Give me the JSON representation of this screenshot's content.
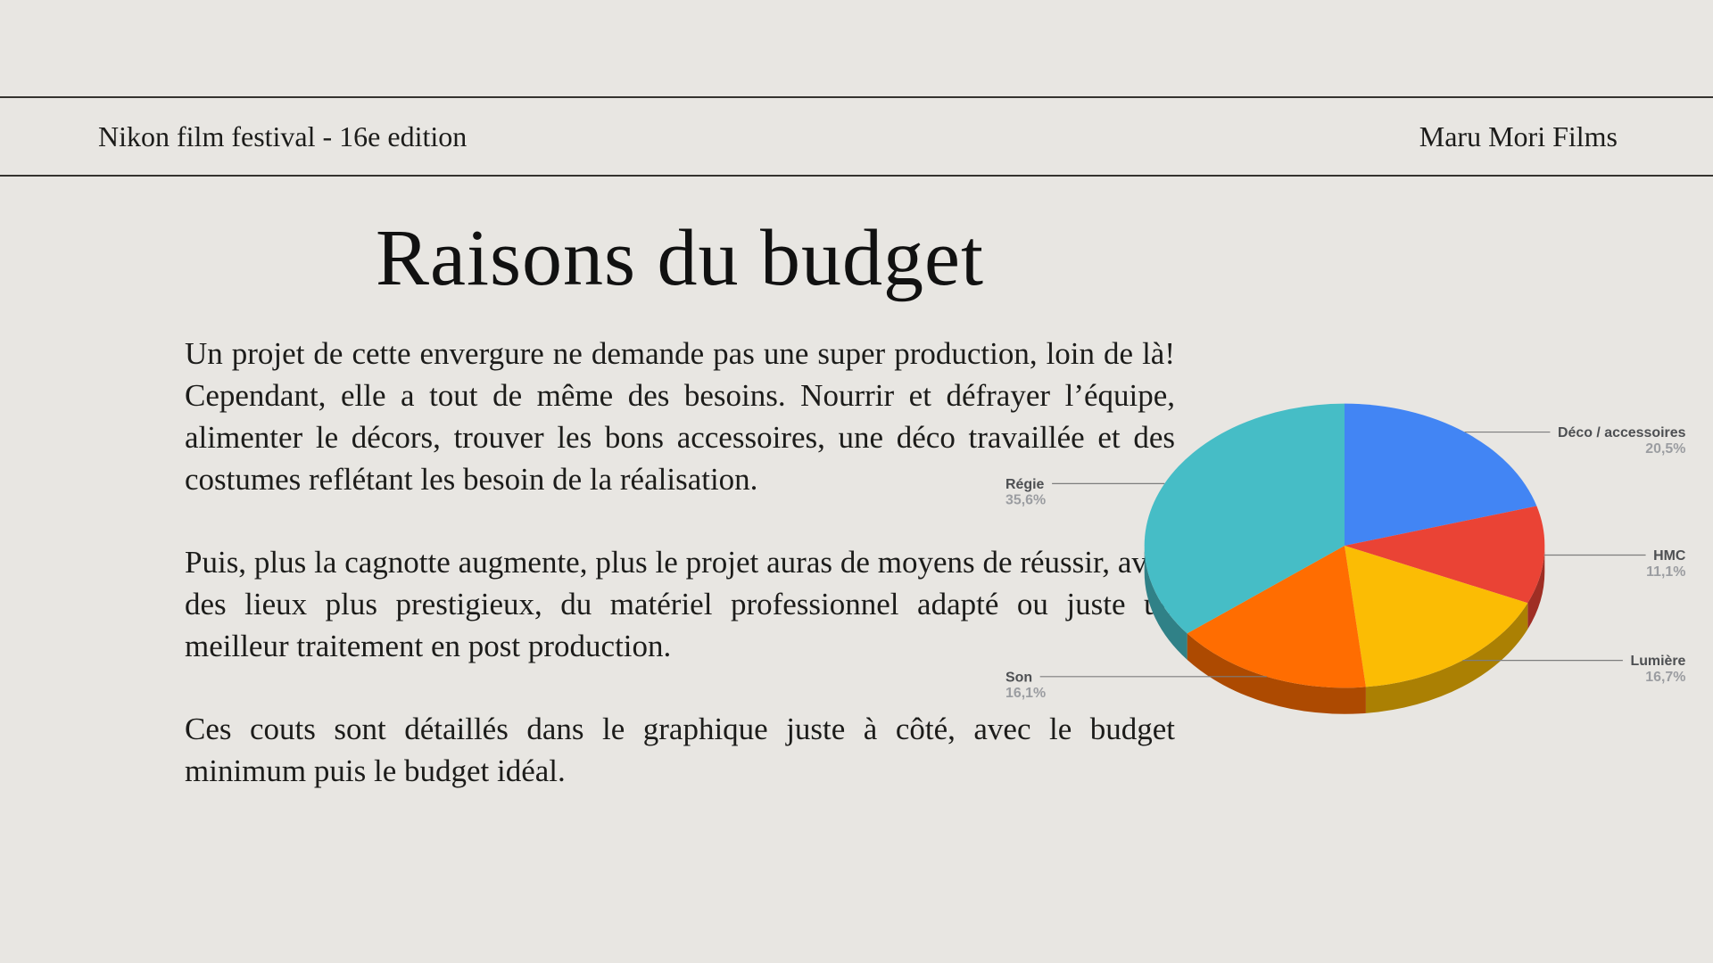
{
  "page": {
    "background": "#e8e6e2"
  },
  "header": {
    "left": "Nikon film festival - 16e edition",
    "right": "Maru Mori Films"
  },
  "main": {
    "title": "Raisons du budget",
    "paragraphs": [
      "Un projet de cette envergure ne demande pas une super production, loin de là! Cependant, elle a tout de même des besoins. Nourrir et  défrayer l’équipe, alimenter le décors, trouver les bons accessoires, une déco travaillée et des costumes reflétant les besoin de la réalisation.",
      "Puis, plus la cagnotte augmente, plus le projet auras de moyens de réussir, avec des lieux plus prestigieux, du matériel professionnel adapté ou juste un meilleur traitement en post production.",
      "Ces couts sont détaillés dans le graphique juste à côté, avec le budget minimum puis le budget idéal."
    ]
  },
  "chart_data": {
    "type": "pie",
    "style": "3d",
    "start_angle_deg": 0,
    "direction": "clockwise",
    "legend": "labeled-callouts",
    "slices": [
      {
        "label": "Déco / accessoires",
        "value": 20.5,
        "percent_label": "20,5%",
        "color": "#4285F4"
      },
      {
        "label": "HMC",
        "value": 11.1,
        "percent_label": "11,1%",
        "color": "#EA4335"
      },
      {
        "label": "Lumière",
        "value": 16.7,
        "percent_label": "16,7%",
        "color": "#FBBC04"
      },
      {
        "label": "Son",
        "value": 16.1,
        "percent_label": "16,1%",
        "color": "#FF6D01"
      },
      {
        "label": "Régie",
        "value": 35.6,
        "percent_label": "35,6%",
        "color": "#46BDC6"
      }
    ],
    "label_color": "#4d4f52",
    "percent_color": "#9b9da1",
    "line_color": "#7d7d7d"
  }
}
